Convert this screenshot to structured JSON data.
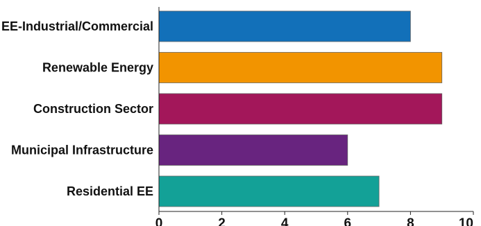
{
  "chart_data": {
    "type": "bar",
    "orientation": "horizontal",
    "title": "",
    "xlabel": "",
    "ylabel": "",
    "categories": [
      "EE-Industrial/Commercial",
      "Renewable Energy",
      "Construction Sector",
      "Municipal Infrastructure",
      "Residential EE"
    ],
    "values": [
      8,
      9,
      9,
      6,
      7
    ],
    "colors": [
      "#1270b9",
      "#f29400",
      "#a3175a",
      "#68247f",
      "#13a197"
    ],
    "xlim": [
      0,
      10
    ],
    "xticks": [
      "0",
      "2",
      "4",
      "6",
      "8",
      "10"
    ],
    "grid": false,
    "legend": "none"
  }
}
